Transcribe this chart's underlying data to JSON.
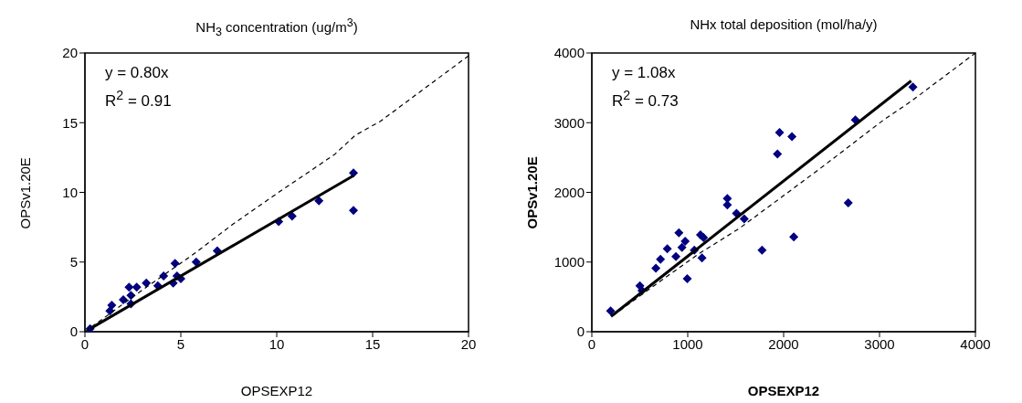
{
  "chart_data": [
    {
      "type": "scatter",
      "title": "NH$_{3}$ concentration (ug/m$^{3}$)",
      "xlabel": "OPSEXP12",
      "ylabel": "OPSv1.20E",
      "xlim": [
        0,
        20
      ],
      "ylim": [
        0,
        20
      ],
      "xticks": [
        0,
        5,
        10,
        15,
        20
      ],
      "yticks": [
        0,
        5,
        10,
        15,
        20
      ],
      "grid": false,
      "legend": false,
      "marker": "diamond",
      "annotations": [
        "y = 0.80x",
        "R$^{2}$ = 0.91"
      ],
      "series": [
        {
          "type": "scatter",
          "color": "#000080",
          "x": [
            0.27,
            1.3,
            1.4,
            2.0,
            2.3,
            2.4,
            2.4,
            2.7,
            3.2,
            3.8,
            4.1,
            4.6,
            4.7,
            4.8,
            5.0,
            5.8,
            6.9,
            10.1,
            10.8,
            12.2,
            14.0,
            14.0
          ],
          "values": [
            0.22,
            1.5,
            1.9,
            2.3,
            3.2,
            2.6,
            2.0,
            3.2,
            3.5,
            3.3,
            4.0,
            3.5,
            4.9,
            4.0,
            3.8,
            5.0,
            5.8,
            7.9,
            8.3,
            9.4,
            11.4,
            8.7
          ]
        },
        {
          "type": "line",
          "color": "#000000",
          "marker": "none",
          "line_style": "solid",
          "x": [
            0.3,
            14.0
          ],
          "values": [
            0.24,
            11.2
          ]
        },
        {
          "type": "line",
          "color": "#000000",
          "marker": "none",
          "line_style": "dashed",
          "x": [
            0,
            3,
            5.7,
            7.7,
            10.2,
            13,
            14.1,
            15.4,
            20
          ],
          "values": [
            0,
            3,
            5.6,
            7.7,
            10.1,
            12.7,
            14.1,
            15.1,
            19.8
          ]
        }
      ]
    },
    {
      "type": "scatter",
      "title": "NHx total deposition (mol/ha/y)",
      "xlabel": "OPSEXP12",
      "ylabel": "OPSv1.20E",
      "xlim": [
        0,
        4000
      ],
      "ylim": [
        0,
        4000
      ],
      "xticks": [
        0,
        1000,
        2000,
        3000,
        4000
      ],
      "yticks": [
        0,
        1000,
        2000,
        3000,
        4000
      ],
      "grid": false,
      "legend": false,
      "marker": "diamond",
      "annotations": [
        "y = 1.08x",
        "R$^{2}$ = 0.73"
      ],
      "series": [
        {
          "type": "scatter",
          "color": "#000080",
          "x": [
            196,
            501,
            523,
            668,
            716,
            787,
            877,
            908,
            940,
            973,
            995,
            1069,
            1133,
            1149,
            1165,
            1413,
            1413,
            1509,
            1589,
            1775,
            1936,
            1958,
            2087,
            2106,
            2674,
            2748,
            3348
          ],
          "values": [
            300,
            660,
            590,
            910,
            1040,
            1190,
            1080,
            1420,
            1210,
            1300,
            760,
            1170,
            1390,
            1060,
            1350,
            1910,
            1820,
            1700,
            1620,
            1170,
            2550,
            2860,
            2800,
            1360,
            1850,
            3040,
            3510
          ]
        },
        {
          "type": "line",
          "color": "#000000",
          "marker": "none",
          "line_style": "solid",
          "x": [
            200,
            3330
          ],
          "values": [
            220,
            3600
          ]
        },
        {
          "type": "line",
          "color": "#000000",
          "marker": "none",
          "line_style": "dashed",
          "x": [
            218,
            668,
            1117,
            1535,
            2016,
            2369,
            3043,
            3332,
            4000
          ],
          "values": [
            230,
            680,
            1120,
            1480,
            1970,
            2330,
            3040,
            3310,
            4000
          ]
        }
      ]
    }
  ]
}
